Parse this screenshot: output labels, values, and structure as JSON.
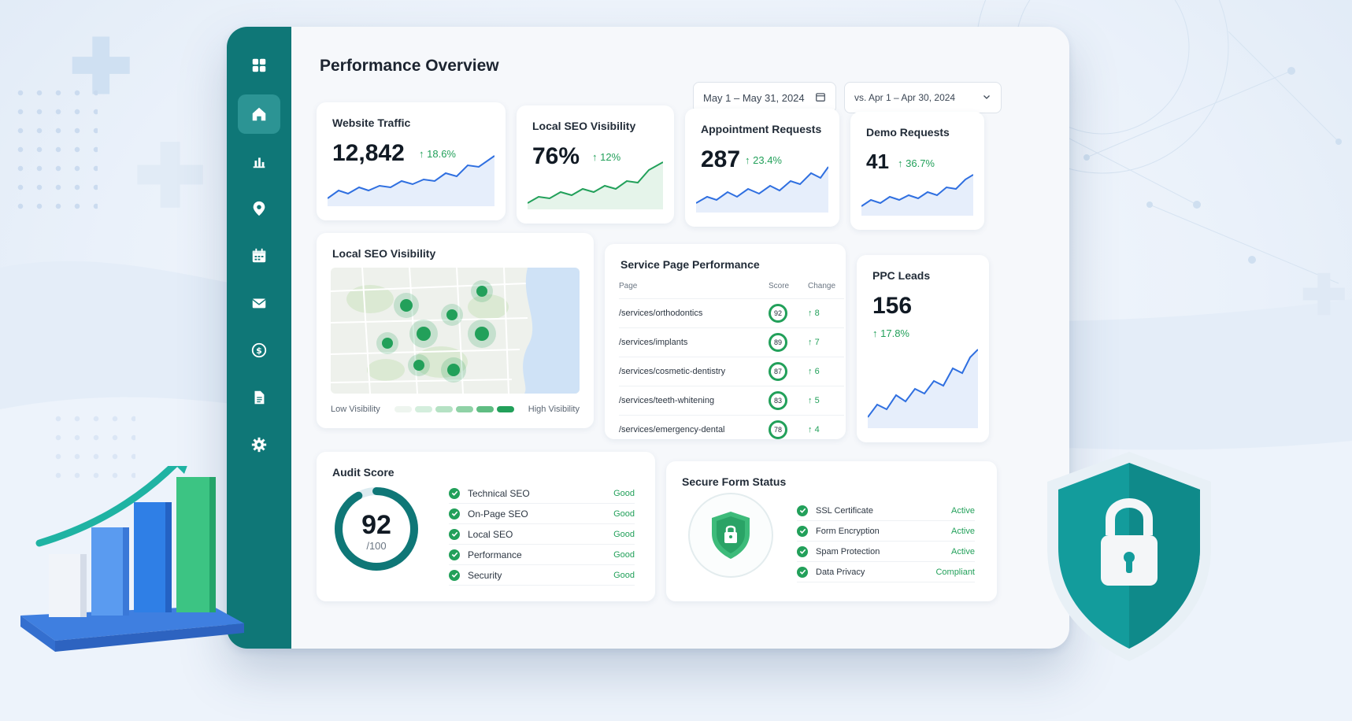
{
  "page_title": "Performance Overview",
  "date_range": "May 1 – May 31, 2024",
  "compare_range": "vs. Apr 1 – Apr 30, 2024",
  "sidebar": {
    "icons": [
      "grid-icon",
      "home-icon",
      "bar-chart-icon",
      "map-pin-icon",
      "calendar-icon",
      "mail-icon",
      "dollar-icon",
      "document-icon",
      "gear-icon"
    ],
    "active": "home-icon"
  },
  "kpis": [
    {
      "title": "Website Traffic",
      "value": "12,842",
      "delta": "18.6%"
    },
    {
      "title": "Local SEO Visibility",
      "value": "76%",
      "delta": "12%"
    },
    {
      "title": "Appointment Requests",
      "value": "287",
      "delta": "23.4%"
    },
    {
      "title": "Demo Requests",
      "value": "41",
      "delta": "36.7%"
    }
  ],
  "local_seo_map": {
    "title": "Local SEO Visibility",
    "legend_low": "Low Visibility",
    "legend_high": "High Visibility"
  },
  "service_pages": {
    "title": "Service Page Performance",
    "headers": {
      "page": "Page",
      "score": "Score",
      "change": "Change"
    },
    "rows": [
      {
        "page": "/services/orthodontics",
        "score": "92",
        "change": "8"
      },
      {
        "page": "/services/implants",
        "score": "89",
        "change": "7"
      },
      {
        "page": "/services/cosmetic-dentistry",
        "score": "87",
        "change": "6"
      },
      {
        "page": "/services/teeth-whitening",
        "score": "83",
        "change": "5"
      },
      {
        "page": "/services/emergency-dental",
        "score": "78",
        "change": "4"
      }
    ]
  },
  "ppc": {
    "title": "PPC Leads",
    "value": "156",
    "delta": "17.8%"
  },
  "audit": {
    "title": "Audit Score",
    "score": "92",
    "out_of": "/100",
    "score_fraction": 0.92,
    "items": [
      {
        "label": "Technical SEO",
        "status": "Good"
      },
      {
        "label": "On-Page SEO",
        "status": "Good"
      },
      {
        "label": "Local SEO",
        "status": "Good"
      },
      {
        "label": "Performance",
        "status": "Good"
      },
      {
        "label": "Security",
        "status": "Good"
      }
    ]
  },
  "secure_form": {
    "title": "Secure Form Status",
    "items": [
      {
        "label": "SSL Certificate",
        "status": "Active"
      },
      {
        "label": "Form Encryption",
        "status": "Active"
      },
      {
        "label": "Spam Protection",
        "status": "Active"
      },
      {
        "label": "Data Privacy",
        "status": "Compliant"
      }
    ]
  },
  "colors": {
    "teal": "#0f7777",
    "green": "#22a05a",
    "blue": "#2f6fe0",
    "accent_teal": "#18a5a5"
  }
}
